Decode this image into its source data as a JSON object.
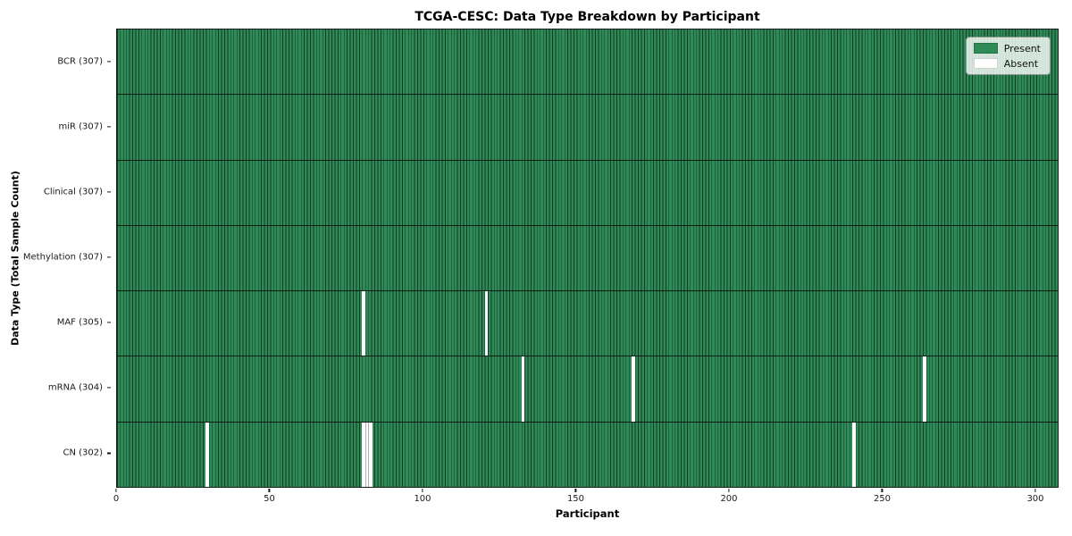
{
  "figure": {
    "background": "#ffffff"
  },
  "chart_data": {
    "type": "heatmap",
    "title": "TCGA-CESC: Data Type Breakdown by Participant",
    "xlabel": "Participant",
    "ylabel": "Data Type (Total Sample Count)",
    "xlim": [
      0,
      307
    ],
    "n_participants": 307,
    "x_ticks": [
      0,
      50,
      100,
      150,
      200,
      250,
      300
    ],
    "grid": "row separators only",
    "legend": {
      "position": "upper right",
      "entries": [
        {
          "label": "Present",
          "color": "#2e8b57"
        },
        {
          "label": "Absent",
          "color": "#ffffff"
        }
      ]
    },
    "colors": {
      "present": "#2e8b57",
      "present_edge": "rgba(12,35,22,0.8)",
      "absent": "#ffffff",
      "separator": "rgba(0,0,0,0.78)"
    },
    "rows": [
      {
        "data_type": "BCR",
        "label": "BCR (307)",
        "total": 307,
        "present_count": 307,
        "absent_participants": []
      },
      {
        "data_type": "miR",
        "label": "miR (307)",
        "total": 307,
        "present_count": 307,
        "absent_participants": []
      },
      {
        "data_type": "Clinical",
        "label": "Clinical (307)",
        "total": 307,
        "present_count": 307,
        "absent_participants": []
      },
      {
        "data_type": "Methylation",
        "label": "Methylation (307)",
        "total": 307,
        "present_count": 307,
        "absent_participants": []
      },
      {
        "data_type": "MAF",
        "label": "MAF (305)",
        "total": 305,
        "present_count": 305,
        "absent_participants": [
          80,
          120
        ]
      },
      {
        "data_type": "mRNA",
        "label": "mRNA (304)",
        "total": 304,
        "present_count": 304,
        "absent_participants": [
          132,
          168,
          263
        ]
      },
      {
        "data_type": "CN",
        "label": "CN (302)",
        "total": 302,
        "present_count": 302,
        "absent_participants": [
          29,
          80,
          81,
          82,
          240
        ]
      }
    ]
  }
}
